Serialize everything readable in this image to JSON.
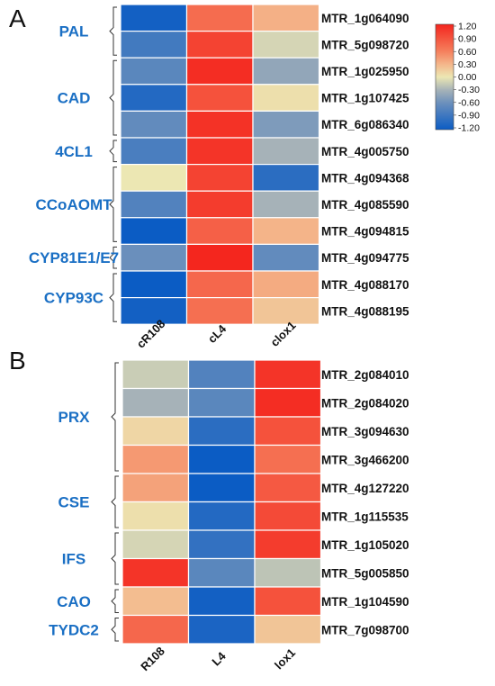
{
  "chart_data": {
    "type": "heatmap",
    "colorscale": {
      "min": -1.2,
      "max": 1.2,
      "stops": [
        {
          "value": -1.2,
          "color": "#0b5cc4"
        },
        {
          "value": -0.6,
          "color": "#6a8fbc"
        },
        {
          "value": -0.3,
          "color": "#a6b2b8"
        },
        {
          "value": 0.0,
          "color": "#ece7b3"
        },
        {
          "value": 0.3,
          "color": "#f4b489"
        },
        {
          "value": 0.6,
          "color": "#f57d5b"
        },
        {
          "value": 1.2,
          "color": "#f4261e"
        }
      ],
      "ticks": [
        "1.20",
        "0.90",
        "0.60",
        "0.30",
        "0.00",
        "-0.30",
        "-0.60",
        "-0.90",
        "-1.20"
      ]
    },
    "panels": [
      {
        "letter": "A",
        "columns": [
          "cR108",
          "cL4",
          "clox1"
        ],
        "rows": [
          "MTR_1g064090",
          "MTR_5g098720",
          "MTR_1g025950",
          "MTR_1g107425",
          "MTR_6g086340",
          "MTR_4g005750",
          "MTR_4g094368",
          "MTR_4g085590",
          "MTR_4g094815",
          "MTR_4g094775",
          "MTR_4g088170",
          "MTR_4g088195"
        ],
        "values": [
          [
            -1.15,
            0.72,
            0.32
          ],
          [
            -0.85,
            1.0,
            -0.1
          ],
          [
            -0.7,
            1.15,
            -0.4
          ],
          [
            -1.05,
            0.9,
            0.05
          ],
          [
            -0.65,
            1.12,
            -0.5
          ],
          [
            -0.8,
            1.1,
            -0.3
          ],
          [
            0.0,
            1.0,
            -1.0
          ],
          [
            -0.75,
            1.05,
            -0.3
          ],
          [
            -1.2,
            0.8,
            0.3
          ],
          [
            -0.6,
            1.2,
            -0.65
          ],
          [
            -1.2,
            0.75,
            0.35
          ],
          [
            -1.15,
            0.7,
            0.2
          ]
        ],
        "groups": [
          {
            "label": "PAL",
            "start": 0,
            "end": 1
          },
          {
            "label": "CAD",
            "start": 2,
            "end": 4
          },
          {
            "label": "4CL1",
            "start": 5,
            "end": 5
          },
          {
            "label": "CCoAOMT",
            "start": 6,
            "end": 8
          },
          {
            "label": "CYP81E1/E7",
            "start": 9,
            "end": 9
          },
          {
            "label": "CYP93C",
            "start": 10,
            "end": 11
          }
        ]
      },
      {
        "letter": "B",
        "columns": [
          "R108",
          "L4",
          "lox1"
        ],
        "rows": [
          "MTR_2g084010",
          "MTR_2g084020",
          "MTR_3g094630",
          "MTR_3g466200",
          "MTR_4g127220",
          "MTR_1g115535",
          "MTR_1g105020",
          "MTR_5g005850",
          "MTR_1g104590",
          "MTR_7g098700"
        ],
        "values": [
          [
            -0.15,
            -0.75,
            1.1
          ],
          [
            -0.3,
            -0.7,
            1.15
          ],
          [
            0.1,
            -1.0,
            0.9
          ],
          [
            0.45,
            -1.2,
            0.7
          ],
          [
            0.4,
            -1.2,
            0.85
          ],
          [
            0.05,
            -1.05,
            0.95
          ],
          [
            -0.1,
            -0.95,
            1.05
          ],
          [
            1.1,
            -0.7,
            -0.2
          ],
          [
            0.25,
            -1.15,
            0.9
          ],
          [
            0.75,
            -1.1,
            0.2
          ]
        ],
        "groups": [
          {
            "label": "PRX",
            "start": 0,
            "end": 3
          },
          {
            "label": "CSE",
            "start": 4,
            "end": 5
          },
          {
            "label": "IFS",
            "start": 6,
            "end": 7
          },
          {
            "label": "CAO",
            "start": 8,
            "end": 8
          },
          {
            "label": "TYDC2",
            "start": 9,
            "end": 9
          }
        ]
      }
    ]
  }
}
